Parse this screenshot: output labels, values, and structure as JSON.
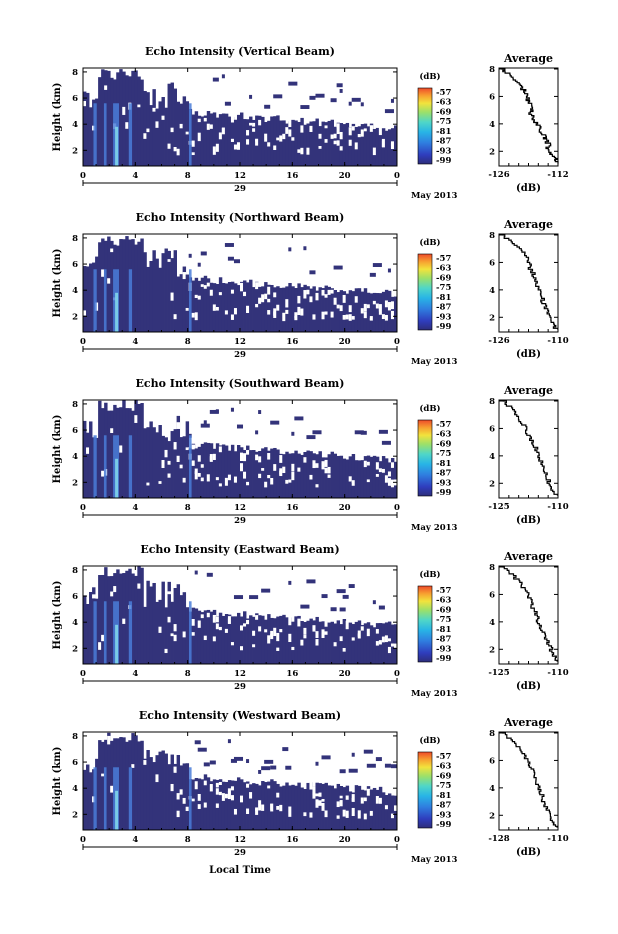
{
  "chart_data": [
    {
      "type": "heatmap",
      "title": "Echo Intensity (Vertical Beam)",
      "ylabel": "Height (km)",
      "x_ticks": [
        "0",
        "4",
        "8",
        "12",
        "16",
        "20",
        "0"
      ],
      "y_ticks": [
        "2",
        "4",
        "6",
        "8"
      ],
      "date_label": "29",
      "month_label": "May 2013",
      "colorbar_unit": "(dB)",
      "colorbar_ticks": [
        "-57",
        "-63",
        "-69",
        "-75",
        "-81",
        "-87",
        "-93",
        "-99"
      ],
      "profile": {
        "title": "Average",
        "xlabel": "(dB)",
        "x_ticks": [
          "-126",
          "-112"
        ],
        "xlim": [
          -126,
          -112
        ],
        "y_ticks": [
          "2",
          "4",
          "6",
          "8"
        ],
        "ylim": [
          1,
          8
        ],
        "values": [
          [
            -112,
            1.1
          ],
          [
            -112.5,
            1.4
          ],
          [
            -113.5,
            1.7
          ],
          [
            -114.5,
            2.0
          ],
          [
            -114,
            2.4
          ],
          [
            -115,
            2.8
          ],
          [
            -115.5,
            3.2
          ],
          [
            -116.5,
            3.6
          ],
          [
            -117,
            4.0
          ],
          [
            -118,
            4.4
          ],
          [
            -118.5,
            4.8
          ],
          [
            -118,
            5.2
          ],
          [
            -119,
            5.6
          ],
          [
            -119.5,
            6.0
          ],
          [
            -120,
            6.4
          ],
          [
            -121,
            6.8
          ],
          [
            -122.5,
            7.2
          ],
          [
            -124,
            7.6
          ],
          [
            -125.5,
            8.0
          ]
        ]
      }
    },
    {
      "type": "heatmap",
      "title": "Echo Intensity (Northward Beam)",
      "ylabel": "Height (km)",
      "x_ticks": [
        "0",
        "4",
        "8",
        "12",
        "16",
        "20",
        "0"
      ],
      "y_ticks": [
        "2",
        "4",
        "6",
        "8"
      ],
      "date_label": "29",
      "month_label": "May 2013",
      "colorbar_unit": "(dB)",
      "colorbar_ticks": [
        "-57",
        "-63",
        "-69",
        "-75",
        "-81",
        "-87",
        "-93",
        "-99"
      ],
      "profile": {
        "title": "Average",
        "xlabel": "(dB)",
        "x_ticks": [
          "-126",
          "-110"
        ],
        "xlim": [
          -126,
          -110
        ],
        "y_ticks": [
          "2",
          "4",
          "6",
          "8"
        ],
        "ylim": [
          1,
          8
        ],
        "values": [
          [
            -110.5,
            1.1
          ],
          [
            -111.5,
            1.5
          ],
          [
            -112.5,
            2.0
          ],
          [
            -113,
            2.5
          ],
          [
            -114,
            3.0
          ],
          [
            -114.5,
            3.5
          ],
          [
            -115,
            4.0
          ],
          [
            -116,
            4.5
          ],
          [
            -116.5,
            5.0
          ],
          [
            -117.5,
            5.5
          ],
          [
            -118,
            6.0
          ],
          [
            -119,
            6.5
          ],
          [
            -121,
            7.0
          ],
          [
            -123,
            7.5
          ],
          [
            -125,
            8.0
          ]
        ]
      }
    },
    {
      "type": "heatmap",
      "title": "Echo Intensity (Southward Beam)",
      "ylabel": "Height (km)",
      "x_ticks": [
        "0",
        "4",
        "8",
        "12",
        "16",
        "20",
        "0"
      ],
      "y_ticks": [
        "2",
        "4",
        "6",
        "8"
      ],
      "date_label": "29",
      "month_label": "May 2013",
      "colorbar_unit": "(dB)",
      "colorbar_ticks": [
        "-57",
        "-63",
        "-69",
        "-75",
        "-81",
        "-87",
        "-93",
        "-99"
      ],
      "profile": {
        "title": "Average",
        "xlabel": "(dB)",
        "x_ticks": [
          "-125",
          "-110"
        ],
        "xlim": [
          -126,
          -110
        ],
        "y_ticks": [
          "2",
          "4",
          "6",
          "8"
        ],
        "ylim": [
          1,
          8
        ],
        "values": [
          [
            -110.5,
            1.1
          ],
          [
            -111.5,
            1.5
          ],
          [
            -112.5,
            2.0
          ],
          [
            -113,
            2.5
          ],
          [
            -114,
            3.0
          ],
          [
            -114.5,
            3.5
          ],
          [
            -115.5,
            4.0
          ],
          [
            -116,
            4.5
          ],
          [
            -117,
            5.0
          ],
          [
            -118,
            5.5
          ],
          [
            -119,
            6.0
          ],
          [
            -120,
            6.5
          ],
          [
            -121.5,
            7.0
          ],
          [
            -123,
            7.5
          ],
          [
            -125,
            8.0
          ]
        ]
      }
    },
    {
      "type": "heatmap",
      "title": "Echo Intensity (Eastward Beam)",
      "ylabel": "Height (km)",
      "x_ticks": [
        "0",
        "4",
        "8",
        "12",
        "16",
        "20",
        "0"
      ],
      "y_ticks": [
        "2",
        "4",
        "6",
        "8"
      ],
      "date_label": "29",
      "month_label": "May 2013",
      "colorbar_unit": "(dB)",
      "colorbar_ticks": [
        "-57",
        "-63",
        "-69",
        "-75",
        "-81",
        "-87",
        "-93",
        "-99"
      ],
      "profile": {
        "title": "Average",
        "xlabel": "(dB)",
        "x_ticks": [
          "-125",
          "-110"
        ],
        "xlim": [
          -126,
          -110
        ],
        "y_ticks": [
          "2",
          "4",
          "6",
          "8"
        ],
        "ylim": [
          1,
          8
        ],
        "values": [
          [
            -110.5,
            1.1
          ],
          [
            -111,
            1.5
          ],
          [
            -112,
            2.0
          ],
          [
            -113,
            2.5
          ],
          [
            -114,
            3.0
          ],
          [
            -114.5,
            3.5
          ],
          [
            -115.5,
            4.0
          ],
          [
            -116,
            4.5
          ],
          [
            -117,
            5.0
          ],
          [
            -117.5,
            5.5
          ],
          [
            -118.5,
            6.0
          ],
          [
            -119.5,
            6.5
          ],
          [
            -121,
            7.0
          ],
          [
            -123,
            7.5
          ],
          [
            -125,
            8.0
          ]
        ]
      }
    },
    {
      "type": "heatmap",
      "title": "Echo Intensity (Westward Beam)",
      "ylabel": "Height (km)",
      "xlabel": "Local Time",
      "x_ticks": [
        "0",
        "4",
        "8",
        "12",
        "16",
        "20",
        "0"
      ],
      "y_ticks": [
        "2",
        "4",
        "6",
        "8"
      ],
      "date_label": "29",
      "month_label": "May 2013",
      "colorbar_unit": "(dB)",
      "colorbar_ticks": [
        "-57",
        "-63",
        "-69",
        "-75",
        "-81",
        "-87",
        "-93",
        "-99"
      ],
      "profile": {
        "title": "Average",
        "xlabel": "(dB)",
        "x_ticks": [
          "-128",
          "-110"
        ],
        "xlim": [
          -128,
          -110
        ],
        "y_ticks": [
          "2",
          "4",
          "6",
          "8"
        ],
        "ylim": [
          1,
          8
        ],
        "values": [
          [
            -110.5,
            1.1
          ],
          [
            -111.5,
            1.5
          ],
          [
            -112.5,
            2.0
          ],
          [
            -113.5,
            2.5
          ],
          [
            -114.5,
            3.0
          ],
          [
            -115,
            3.5
          ],
          [
            -116,
            4.0
          ],
          [
            -117,
            4.5
          ],
          [
            -117.5,
            5.0
          ],
          [
            -118.5,
            5.5
          ],
          [
            -119.5,
            6.0
          ],
          [
            -121,
            6.5
          ],
          [
            -122.5,
            7.0
          ],
          [
            -124.5,
            7.5
          ],
          [
            -127,
            8.0
          ]
        ]
      }
    }
  ],
  "colors": {
    "fill": "#33337a",
    "bright_core": "#4a7dd8",
    "highlight": "#7fd6ea",
    "colorbar": [
      "#2d2d7a",
      "#2f3dbd",
      "#2f7fe0",
      "#28b4e6",
      "#4fd6c8",
      "#9be06a",
      "#f2e33c",
      "#f7a030",
      "#ee4a2a"
    ]
  }
}
